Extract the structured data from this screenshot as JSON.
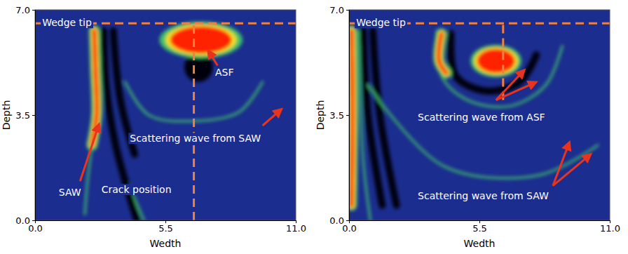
{
  "chart_data": [
    {
      "type": "image",
      "xlabel": "Wedth",
      "ylabel": "Depth",
      "xlim": [
        0,
        11
      ],
      "ylim": [
        0,
        7
      ],
      "xticks": [
        {
          "value": 0,
          "label": "0.0"
        },
        {
          "value": 5.5,
          "label": "5.5"
        },
        {
          "value": 11,
          "label": "11.0"
        }
      ],
      "yticks": [
        {
          "value": 0,
          "label": "0.0"
        },
        {
          "value": 3.5,
          "label": "3.5"
        },
        {
          "value": 7,
          "label": "7.0"
        }
      ],
      "guides": [
        {
          "axis": "y",
          "value": 6.55,
          "range": [
            0,
            11
          ],
          "color": "#f08040"
        },
        {
          "axis": "x",
          "value": 6.7,
          "range": [
            0,
            6.55
          ],
          "color": "#f08040"
        }
      ],
      "features": [
        {
          "kind": "faint",
          "color": "#3fbf6a",
          "points": [
            [
              3.0,
              6.3
            ],
            [
              3.1,
              4.0
            ],
            [
              3.6,
              2.0
            ],
            [
              4.6,
              0.0
            ]
          ]
        },
        {
          "kind": "dark",
          "color": "#00000c",
          "points": [
            [
              2.9,
              6.3
            ],
            [
              3.0,
              4.5
            ],
            [
              3.4,
              2.5
            ],
            [
              4.3,
              0.0
            ]
          ]
        },
        {
          "kind": "dark",
          "color": "#00000c",
          "points": [
            [
              3.3,
              6.3
            ],
            [
              3.6,
              4.0
            ],
            [
              4.2,
              2.2
            ]
          ]
        },
        {
          "kind": "band",
          "color": "#ff2200",
          "points": [
            [
              2.5,
              6.3
            ],
            [
              2.55,
              5.0
            ],
            [
              2.6,
              3.5
            ],
            [
              2.4,
              2.5
            ]
          ]
        },
        {
          "kind": "faint",
          "color": "#3fbf6a",
          "points": [
            [
              2.4,
              2.5
            ],
            [
              2.2,
              1.2
            ],
            [
              2.1,
              0.2
            ]
          ]
        },
        {
          "kind": "faint",
          "color": "#3fbf6a",
          "points": [
            [
              3.8,
              4.6
            ],
            [
              4.8,
              3.5
            ],
            [
              6.7,
              3.3
            ],
            [
              8.6,
              3.6
            ],
            [
              9.6,
              4.6
            ]
          ]
        },
        {
          "kind": "hole",
          "color": "#00000c",
          "center": [
            6.9,
            5.1
          ],
          "radius": [
            0.6,
            0.5
          ]
        },
        {
          "kind": "blob",
          "color": "#ff2200",
          "center": [
            7.0,
            6.0
          ],
          "radius": [
            1.3,
            0.45
          ]
        }
      ],
      "annotations": [
        {
          "text": "Wedge tip",
          "x": 0.3,
          "y": 6.55,
          "arrows": []
        },
        {
          "text": "ASF",
          "x": 7.6,
          "y": 4.9,
          "arrows": [
            [
              7.7,
              5.15,
              7.3,
              5.65
            ]
          ]
        },
        {
          "text": "Scattering wave from SAW",
          "x": 4.0,
          "y": 2.7,
          "arrows": [
            [
              9.6,
              3.15,
              10.4,
              3.7
            ]
          ]
        },
        {
          "text": "SAW",
          "x": 1.0,
          "y": 0.9,
          "arrows": [
            [
              1.9,
              1.3,
              2.7,
              3.2
            ]
          ]
        },
        {
          "text": "Crack position",
          "x": 2.8,
          "y": 1.0,
          "arrows": []
        }
      ],
      "arrow_color": "#e8341c"
    },
    {
      "type": "image",
      "xlabel": "Wedth",
      "ylabel": "Depth",
      "xlim": [
        0,
        11
      ],
      "ylim": [
        0,
        7
      ],
      "xticks": [
        {
          "value": 0,
          "label": "0.0"
        },
        {
          "value": 5.5,
          "label": "5.5"
        },
        {
          "value": 11,
          "label": "11.0"
        }
      ],
      "yticks": [
        {
          "value": 0,
          "label": "0.0"
        },
        {
          "value": 3.5,
          "label": "3.5"
        },
        {
          "value": 7,
          "label": "7.0"
        }
      ],
      "guides": [
        {
          "axis": "y",
          "value": 6.55,
          "range": [
            0,
            11
          ],
          "color": "#f08040"
        },
        {
          "axis": "x",
          "value": 6.5,
          "range": [
            4.0,
            6.55
          ],
          "color": "#f08040"
        }
      ],
      "features": [
        {
          "kind": "faint",
          "color": "#3fbf6a",
          "points": [
            [
              0.4,
              6.3
            ],
            [
              0.6,
              2.0
            ],
            [
              0.9,
              0.0
            ]
          ]
        },
        {
          "kind": "dark",
          "color": "#00000c",
          "points": [
            [
              0.6,
              6.3
            ],
            [
              0.8,
              3.5
            ],
            [
              1.4,
              0.5
            ]
          ]
        },
        {
          "kind": "dark",
          "color": "#00000c",
          "points": [
            [
              1.0,
              6.3
            ],
            [
              1.3,
              3.5
            ],
            [
              2.0,
              0.5
            ]
          ]
        },
        {
          "kind": "band",
          "color": "#ff2200",
          "points": [
            [
              0.1,
              6.3
            ],
            [
              0.15,
              3.5
            ],
            [
              0.1,
              0.5
            ]
          ]
        },
        {
          "kind": "faint",
          "color": "#3fbf6a",
          "points": [
            [
              0.8,
              4.5
            ],
            [
              4.0,
              1.8
            ],
            [
              8.0,
              1.5
            ],
            [
              10.5,
              2.5
            ]
          ]
        },
        {
          "kind": "faint",
          "color": "#3fbf6a",
          "points": [
            [
              3.7,
              6.3
            ],
            [
              3.9,
              4.8
            ],
            [
              5.0,
              4.0
            ],
            [
              6.8,
              3.8
            ],
            [
              8.3,
              4.5
            ],
            [
              9.0,
              5.8
            ]
          ]
        },
        {
          "kind": "dark",
          "color": "#00000c",
          "points": [
            [
              4.3,
              6.2
            ],
            [
              4.5,
              4.8
            ],
            [
              5.8,
              4.3
            ],
            [
              7.2,
              4.6
            ],
            [
              7.9,
              5.5
            ]
          ]
        },
        {
          "kind": "band",
          "color": "#ff2200",
          "points": [
            [
              3.9,
              6.2
            ],
            [
              3.8,
              5.3
            ],
            [
              4.1,
              4.9
            ]
          ]
        },
        {
          "kind": "blob",
          "color": "#ff2200",
          "center": [
            6.2,
            5.3
          ],
          "radius": [
            0.8,
            0.4
          ]
        }
      ],
      "annotations": [
        {
          "text": "Wedge tip",
          "x": 0.3,
          "y": 6.55,
          "arrows": []
        },
        {
          "text": "Scattering wave from ASF",
          "x": 2.9,
          "y": 3.4,
          "arrows": [
            [
              6.2,
              4.0,
              7.4,
              5.0
            ],
            [
              6.2,
              4.0,
              7.9,
              4.6
            ]
          ]
        },
        {
          "text": "Scattering wave from SAW",
          "x": 2.9,
          "y": 0.8,
          "arrows": [
            [
              8.6,
              1.15,
              9.3,
              2.6
            ],
            [
              8.6,
              1.15,
              10.2,
              2.2
            ]
          ]
        }
      ],
      "arrow_color": "#e8341c"
    }
  ]
}
